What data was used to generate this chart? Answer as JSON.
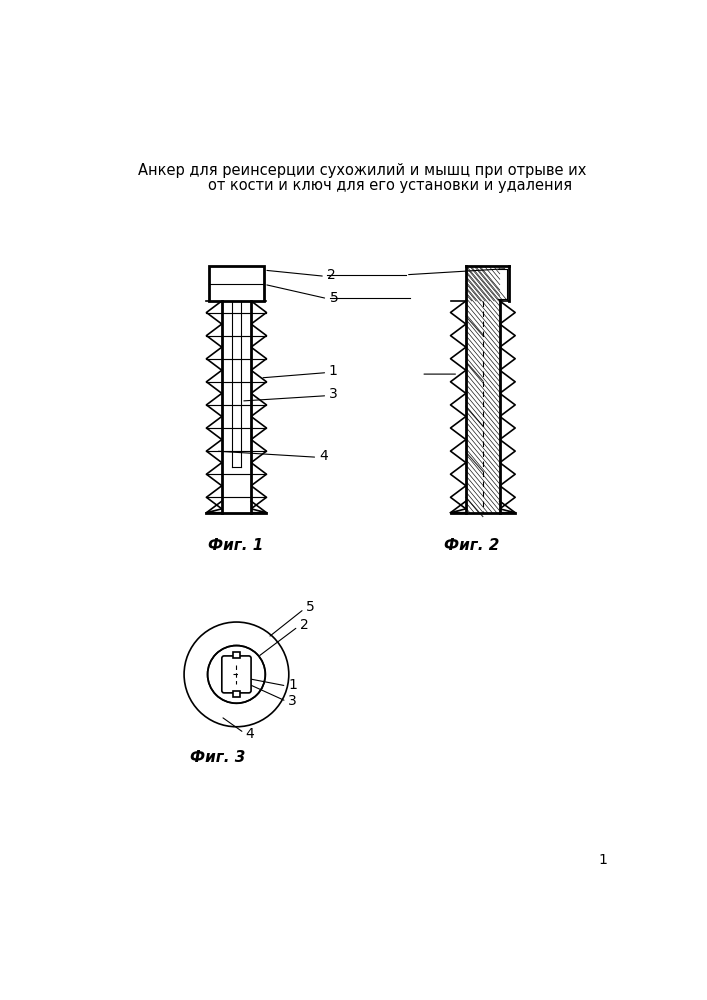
{
  "title_line1": "Анкер для реинсерции сухожилий и мышц при отрыве их",
  "title_line2": "от кости и ключ для его установки и удаления",
  "fig1_label": "Фиг. 1",
  "fig2_label": "Фиг. 2",
  "fig3_label": "Фиг. 3",
  "page_num": "1",
  "bg_color": "#ffffff"
}
